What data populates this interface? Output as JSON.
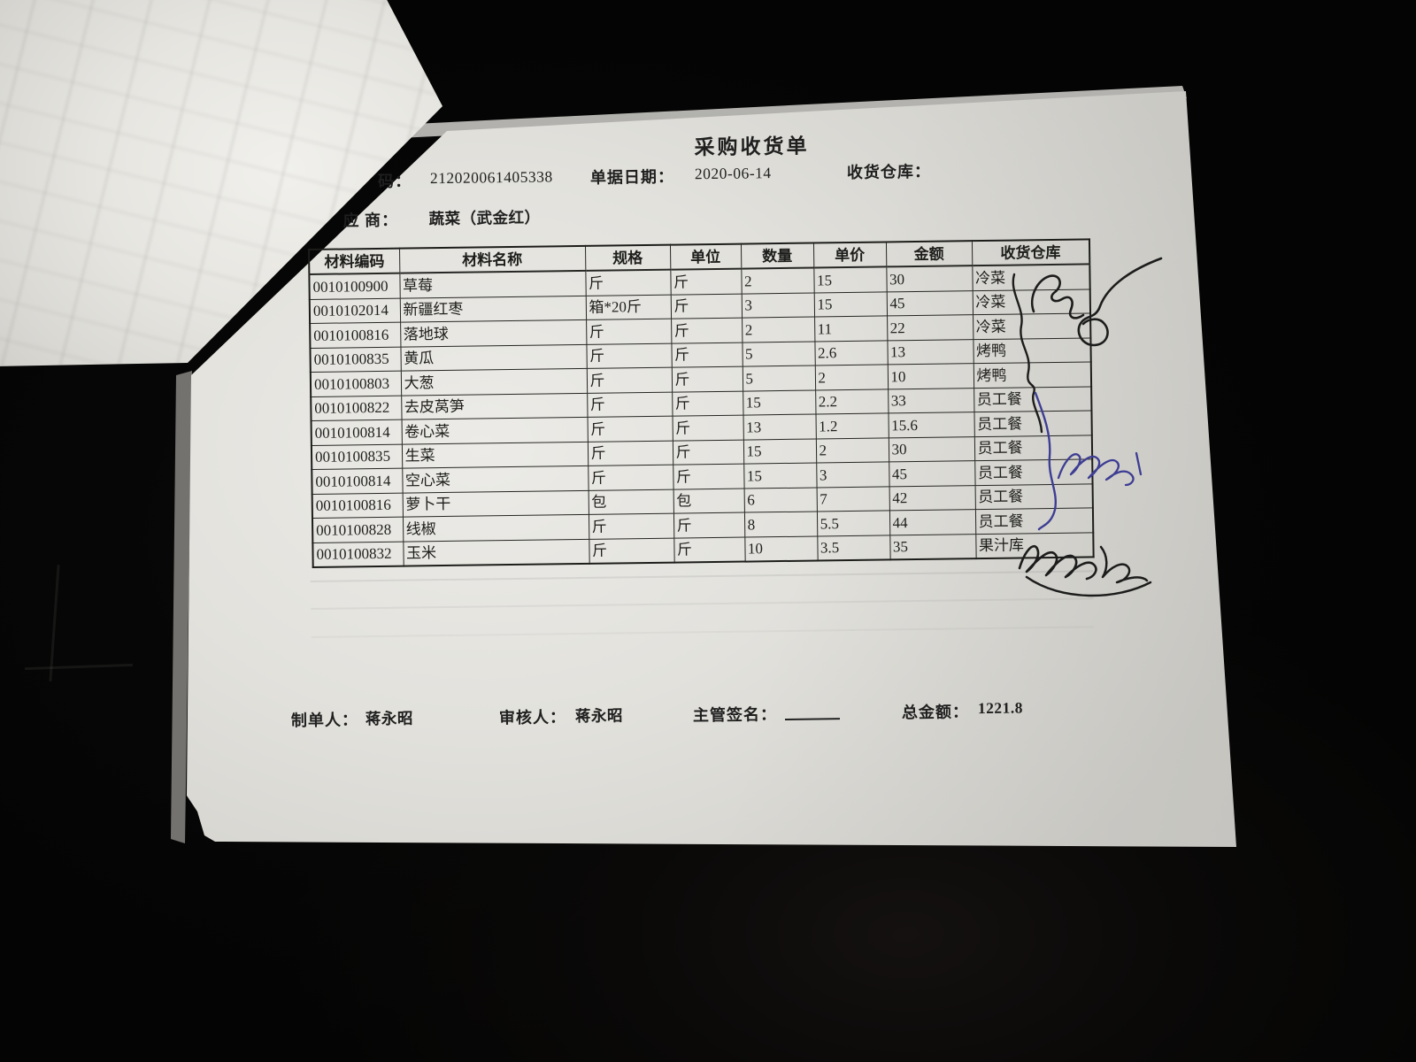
{
  "document": {
    "title": "采购收货单",
    "fields": {
      "doc_no": {
        "label_visible": "码：",
        "value": "212020061405338"
      },
      "date": {
        "label": "单据日期：",
        "value": "2020-06-14"
      },
      "warehouse": {
        "label": "收货仓库：",
        "value": ""
      },
      "supplier": {
        "label_visible": "应 商：",
        "value": "蔬菜（武金红）"
      }
    },
    "table": {
      "columns": [
        "材料编码",
        "材料名称",
        "规格",
        "单位",
        "数量",
        "单价",
        "金额",
        "收货仓库"
      ],
      "column_keys": [
        "code",
        "name",
        "spec",
        "unit",
        "qty",
        "price",
        "amount",
        "warehouse"
      ],
      "rows": [
        {
          "code": "0010100900",
          "name": "草莓",
          "spec": "斤",
          "unit": "斤",
          "qty": "2",
          "price": "15",
          "amount": "30",
          "warehouse": "冷菜"
        },
        {
          "code": "0010102014",
          "name": "新疆红枣",
          "spec": "箱*20斤",
          "unit": "斤",
          "qty": "3",
          "price": "15",
          "amount": "45",
          "warehouse": "冷菜"
        },
        {
          "code": "0010100816",
          "name": "落地球",
          "spec": "斤",
          "unit": "斤",
          "qty": "2",
          "price": "11",
          "amount": "22",
          "warehouse": "冷菜"
        },
        {
          "code": "0010100835",
          "name": "黄瓜",
          "spec": "斤",
          "unit": "斤",
          "qty": "5",
          "price": "2.6",
          "amount": "13",
          "warehouse": "烤鸭"
        },
        {
          "code": "0010100803",
          "name": "大葱",
          "spec": "斤",
          "unit": "斤",
          "qty": "5",
          "price": "2",
          "amount": "10",
          "warehouse": "烤鸭"
        },
        {
          "code": "0010100822",
          "name": "去皮莴笋",
          "spec": "斤",
          "unit": "斤",
          "qty": "15",
          "price": "2.2",
          "amount": "33",
          "warehouse": "员工餐"
        },
        {
          "code": "0010100814",
          "name": "卷心菜",
          "spec": "斤",
          "unit": "斤",
          "qty": "13",
          "price": "1.2",
          "amount": "15.6",
          "warehouse": "员工餐"
        },
        {
          "code": "0010100835",
          "name": "生菜",
          "spec": "斤",
          "unit": "斤",
          "qty": "15",
          "price": "2",
          "amount": "30",
          "warehouse": "员工餐"
        },
        {
          "code": "0010100814",
          "name": "空心菜",
          "spec": "斤",
          "unit": "斤",
          "qty": "15",
          "price": "3",
          "amount": "45",
          "warehouse": "员工餐"
        },
        {
          "code": "0010100816",
          "name": "萝卜干",
          "spec": "包",
          "unit": "包",
          "qty": "6",
          "price": "7",
          "amount": "42",
          "warehouse": "员工餐"
        },
        {
          "code": "0010100828",
          "name": "线椒",
          "spec": "斤",
          "unit": "斤",
          "qty": "8",
          "price": "5.5",
          "amount": "44",
          "warehouse": "员工餐"
        },
        {
          "code": "0010100832",
          "name": "玉米",
          "spec": "斤",
          "unit": "斤",
          "qty": "10",
          "price": "3.5",
          "amount": "35",
          "warehouse": "果汁库"
        }
      ]
    },
    "footer": {
      "maker_label": "制单人：",
      "maker": "蒋永昭",
      "reviewer_label": "审核人：",
      "reviewer": "蒋永昭",
      "manager_label": "主管签名：",
      "total_label": "总金额：",
      "total": "1221.8"
    },
    "handwritten_marks": [
      {
        "ink": "black",
        "location": "warehouse column, rows 1-5",
        "type": "signature scribble with loop and long curve"
      },
      {
        "ink": "blue",
        "location": "warehouse column, rows 6-11",
        "type": "wavy line with signature scribble"
      },
      {
        "ink": "black",
        "location": "beside 果汁库 row",
        "type": "signature scribble with long tail"
      }
    ],
    "ink_colors": {
      "black": "#1c1c1c",
      "blue": "#3d3d94"
    }
  }
}
